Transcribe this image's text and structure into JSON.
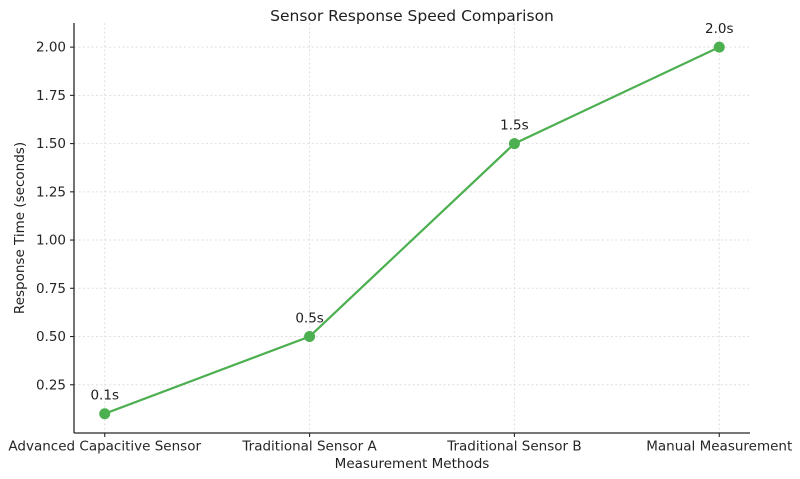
{
  "chart_data": {
    "type": "line",
    "title": "Sensor Response Speed Comparison",
    "xlabel": "Measurement Methods",
    "ylabel": "Response Time (seconds)",
    "categories": [
      "Advanced Capacitive Sensor",
      "Traditional Sensor A",
      "Traditional Sensor B",
      "Manual Measurement"
    ],
    "series": [
      {
        "name": "Response Time",
        "values": [
          0.1,
          0.5,
          1.5,
          2.0
        ]
      }
    ],
    "point_labels": [
      "0.1s",
      "0.5s",
      "1.5s",
      "2.0s"
    ],
    "yticks": [
      0.25,
      0.5,
      0.75,
      1.0,
      1.25,
      1.5,
      1.75,
      2.0
    ],
    "ytick_labels": [
      "0.25",
      "0.50",
      "0.75",
      "1.00",
      "1.25",
      "1.50",
      "1.75",
      "2.00"
    ],
    "ylim": [
      0,
      2.125
    ],
    "grid": true,
    "legend": "none",
    "line_color": "#4CAF50",
    "marker": "circle",
    "background": "#ffffff",
    "text_color": "#262626",
    "grid_color": "#dfdfdf"
  }
}
